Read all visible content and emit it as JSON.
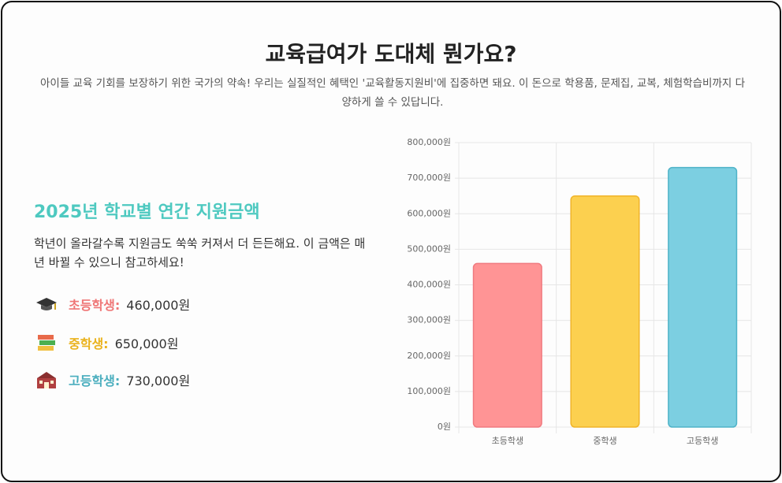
{
  "header": {
    "title": "교육급여가 도대체 뭔가요?",
    "subtitle": "아이들 교육 기회를 보장하기 위한 국가의 약속! 우리는 실질적인 혜택인 '교육활동지원비'에 집중하면 돼요. 이 돈으로 학용품, 문제집, 교복, 체험학습비까지 다양하게 쓸 수 있답니다."
  },
  "section": {
    "heading": "2025년 학교별 연간 지원금액",
    "text": "학년이 올라갈수록 지원금도 쑥쑥 커져서 더 든든해요. 이 금액은 매년 바뀔 수 있으니 참고하세요!",
    "items": [
      {
        "label": "초등학생:",
        "amount": "460,000원"
      },
      {
        "label": "중학생:",
        "amount": "650,000원"
      },
      {
        "label": "고등학생:",
        "amount": "730,000원"
      }
    ]
  },
  "chart_data": {
    "type": "bar",
    "categories": [
      "초등학생",
      "중학생",
      "고등학생"
    ],
    "values": [
      460000,
      650000,
      730000
    ],
    "colors": [
      "#ff9495",
      "#fcd04f",
      "#7ccfe1"
    ],
    "border_colors": [
      "#f07a80",
      "#f0b429",
      "#4fb3c8"
    ],
    "ylim": [
      0,
      800000
    ],
    "yticks": [
      {
        "value": 0,
        "label": "0원"
      },
      {
        "value": 100000,
        "label": "100,000원"
      },
      {
        "value": 200000,
        "label": "200,000원"
      },
      {
        "value": 300000,
        "label": "300,000원"
      },
      {
        "value": 400000,
        "label": "400,000원"
      },
      {
        "value": 500000,
        "label": "500,000원"
      },
      {
        "value": 600000,
        "label": "600,000원"
      },
      {
        "value": 700000,
        "label": "700,000원"
      },
      {
        "value": 800000,
        "label": "800,000원"
      }
    ],
    "grid": true
  }
}
